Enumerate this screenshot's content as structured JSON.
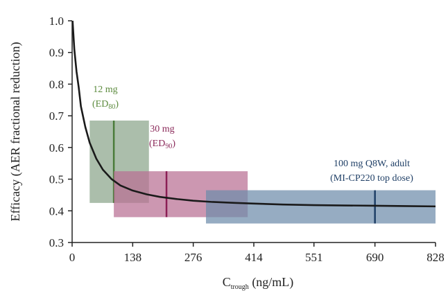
{
  "chart_data": {
    "type": "line",
    "title": "",
    "xlabel": {
      "main": "C",
      "subscript": "trough",
      "rest": " (ng/mL)"
    },
    "ylabel": "Efficacy (AER fractional reduction)",
    "xlim": [
      0,
      828
    ],
    "ylim": [
      0.3,
      1.0
    ],
    "x_ticks": [
      0,
      138,
      276,
      414,
      551,
      690,
      828
    ],
    "y_ticks": [
      "0.3",
      "0.4",
      "0.5",
      "0.6",
      "0.7",
      "0.8",
      "0.9",
      "1.0"
    ],
    "grid": false,
    "curve": {
      "x": [
        1,
        5,
        10,
        15,
        20,
        30,
        40,
        55,
        70,
        90,
        110,
        138,
        170,
        200,
        240,
        276,
        320,
        370,
        414,
        480,
        551,
        620,
        690,
        760,
        828
      ],
      "y": [
        1.0,
        0.91,
        0.84,
        0.79,
        0.73,
        0.665,
        0.615,
        0.565,
        0.53,
        0.5,
        0.48,
        0.464,
        0.452,
        0.444,
        0.437,
        0.432,
        0.428,
        0.425,
        0.423,
        0.42,
        0.418,
        0.417,
        0.416,
        0.415,
        0.414
      ],
      "color": "#1a1a1a"
    },
    "dose_regions": [
      {
        "label_lines": [
          "12 mg"
        ],
        "label_paren": {
          "main": "(ED",
          "sub": "80",
          "close": ")"
        },
        "x_range": [
          40,
          175
        ],
        "y_range": [
          0.425,
          0.685
        ],
        "median_x": 95,
        "fill": "#8aa58a",
        "line_color": "#4a7c3a",
        "label_color": "#5b8a3c"
      },
      {
        "label_lines": [
          "30 mg"
        ],
        "label_paren": {
          "main": "(ED",
          "sub": "90",
          "close": ")"
        },
        "x_range": [
          95,
          400
        ],
        "y_range": [
          0.38,
          0.525
        ],
        "median_x": 215,
        "fill": "#b86f93",
        "line_color": "#8b1f55",
        "label_color": "#8b2a5a"
      },
      {
        "label_lines": [
          "100 mg Q8W, adult",
          "(MI-CP220 top dose)"
        ],
        "label_paren": null,
        "x_range": [
          305,
          828
        ],
        "y_range": [
          0.36,
          0.465
        ],
        "median_x": 690,
        "fill": "#6e8caa",
        "line_color": "#1f3f66",
        "label_color": "#1f3f66"
      }
    ]
  }
}
